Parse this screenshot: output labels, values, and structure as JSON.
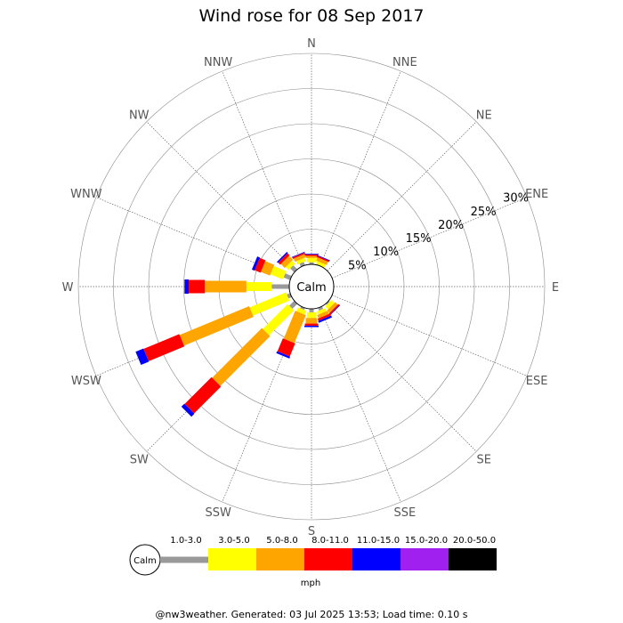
{
  "chart_data": {
    "type": "wind-rose",
    "title": "Wind rose for 08 Sep 2017",
    "directions": [
      "N",
      "NNE",
      "NE",
      "ENE",
      "E",
      "ESE",
      "SE",
      "SSE",
      "S",
      "SSW",
      "SW",
      "WSW",
      "W",
      "WNW",
      "NW",
      "NNW"
    ],
    "radial_axis": {
      "ticks": [
        5,
        10,
        15,
        20,
        25,
        30
      ],
      "tick_labels": [
        "5%",
        "10%",
        "15%",
        "20%",
        "25%",
        "30%"
      ],
      "max": 30,
      "label_direction": "ENE"
    },
    "center_label": "Calm",
    "speed_bins": [
      "1.0-3.0",
      "3.0-5.0",
      "5.0-8.0",
      "8.0-11.0",
      "11.0-15.0",
      "15.0-20.0",
      "20.0-50.0"
    ],
    "bin_colors": [
      "#999999",
      "#ffff00",
      "#ffa500",
      "#ff0000",
      "#0000ff",
      "#a020f0",
      "#000000"
    ],
    "legend_unit": "mph",
    "series": [
      {
        "direction": "N",
        "values": [
          0.3,
          0.6,
          0.3,
          0.2,
          0.1,
          0,
          0
        ]
      },
      {
        "direction": "NNE",
        "values": [
          0,
          0.5,
          0.5,
          0.2,
          0.1,
          0,
          0
        ]
      },
      {
        "direction": "NE",
        "values": [
          0,
          0,
          0,
          0,
          0,
          0,
          0
        ]
      },
      {
        "direction": "ENE",
        "values": [
          0,
          0,
          0,
          0,
          0,
          0,
          0
        ]
      },
      {
        "direction": "E",
        "values": [
          0,
          0,
          0,
          0,
          0,
          0,
          0
        ]
      },
      {
        "direction": "ESE",
        "values": [
          0,
          0,
          0,
          0,
          0,
          0,
          0
        ]
      },
      {
        "direction": "SE",
        "values": [
          0.2,
          0.6,
          0.5,
          0.2,
          0.1,
          0,
          0
        ]
      },
      {
        "direction": "SSE",
        "values": [
          0.4,
          0.5,
          0.5,
          0.3,
          0.3,
          0,
          0
        ]
      },
      {
        "direction": "S",
        "values": [
          0.5,
          0.8,
          0.8,
          0.3,
          0.2,
          0,
          0
        ]
      },
      {
        "direction": "SSW",
        "values": [
          0.3,
          0.6,
          4.3,
          2.0,
          0.3,
          0,
          0
        ]
      },
      {
        "direction": "SW",
        "values": [
          1.0,
          5.0,
          10.0,
          5.4,
          0.6,
          0,
          0
        ]
      },
      {
        "direction": "WSW",
        "values": [
          0.5,
          5.6,
          10.7,
          5.5,
          1.2,
          0,
          0
        ]
      },
      {
        "direction": "W",
        "values": [
          2.5,
          3.6,
          5.9,
          2.3,
          0.6,
          0,
          0
        ]
      },
      {
        "direction": "WNW",
        "values": [
          1.0,
          1.9,
          1.4,
          0.9,
          0.4,
          0,
          0
        ]
      },
      {
        "direction": "NW",
        "values": [
          0.8,
          0.6,
          0.8,
          0.4,
          0.2,
          0,
          0
        ]
      },
      {
        "direction": "NNW",
        "values": [
          0.5,
          0.5,
          0.5,
          0.2,
          0.1,
          0,
          0
        ]
      }
    ]
  },
  "footer": "@nw3weather.  Generated: 03 Jul 2025 13:53; Load time: 0.10 s"
}
